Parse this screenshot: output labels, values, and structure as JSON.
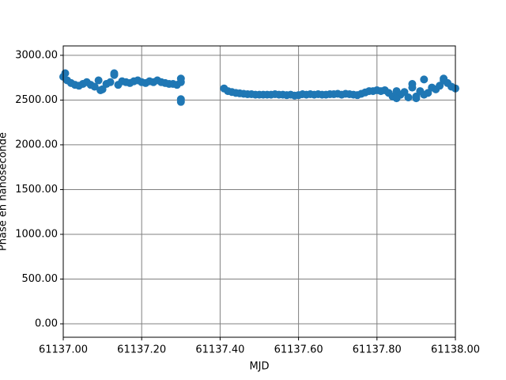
{
  "chart_data": {
    "type": "scatter",
    "x_label": "MJD",
    "y_label": "Phase en nanoseconde",
    "xlim": [
      61137.0,
      61138.0
    ],
    "ylim": [
      -150,
      3105
    ],
    "xticks": [
      {
        "value": 61137.0,
        "label": "61137.00"
      },
      {
        "value": 61137.2,
        "label": "61137.20"
      },
      {
        "value": 61137.4,
        "label": "61137.40"
      },
      {
        "value": 61137.6,
        "label": "61137.60"
      },
      {
        "value": 61137.8,
        "label": "61137.80"
      },
      {
        "value": 61138.0,
        "label": "61138.00"
      }
    ],
    "yticks": [
      {
        "value": 0,
        "label": "0.00"
      },
      {
        "value": 500,
        "label": "500.00"
      },
      {
        "value": 1000,
        "label": "1000.00"
      },
      {
        "value": 1500,
        "label": "1500.00"
      },
      {
        "value": 2000,
        "label": "2000.00"
      },
      {
        "value": 2500,
        "label": "2500.00"
      },
      {
        "value": 3000,
        "label": "3000.00"
      }
    ],
    "grid": true,
    "x": [
      61137.0,
      61137.01,
      61137.02,
      61137.03,
      61137.04,
      61137.05,
      61137.06,
      61137.07,
      61137.08,
      61137.09,
      61137.1,
      61137.11,
      61137.12,
      61137.13,
      61137.14,
      61137.15,
      61137.16,
      61137.17,
      61137.18,
      61137.19,
      61137.2,
      61137.21,
      61137.22,
      61137.23,
      61137.24,
      61137.25,
      61137.26,
      61137.27,
      61137.28,
      61137.29,
      61137.3,
      61137.3,
      61137.3,
      61137.3,
      61137.005,
      61137.13,
      61137.095,
      61137.41,
      61137.42,
      61137.43,
      61137.44,
      61137.45,
      61137.46,
      61137.47,
      61137.48,
      61137.49,
      61137.5,
      61137.51,
      61137.52,
      61137.53,
      61137.54,
      61137.55,
      61137.56,
      61137.57,
      61137.58,
      61137.59,
      61137.6,
      61137.61,
      61137.62,
      61137.63,
      61137.64,
      61137.65,
      61137.66,
      61137.67,
      61137.68,
      61137.69,
      61137.7,
      61137.71,
      61137.72,
      61137.73,
      61137.74,
      61137.75,
      61137.76,
      61137.77,
      61137.78,
      61137.79,
      61137.8,
      61137.81,
      61137.82,
      61137.83,
      61137.84,
      61137.85,
      61137.86,
      61137.87,
      61137.88,
      61137.89,
      61137.9,
      61137.91,
      61137.92,
      61137.93,
      61137.94,
      61137.95,
      61137.96,
      61137.97,
      61137.98,
      61137.99,
      61138.0,
      61137.89,
      61137.92,
      61137.97,
      61137.85,
      61137.9
    ],
    "series": [
      {
        "color": "#1f77b4",
        "values": [
          2760,
          2720,
          2690,
          2670,
          2660,
          2680,
          2700,
          2670,
          2650,
          2720,
          2620,
          2680,
          2700,
          2780,
          2670,
          2710,
          2700,
          2690,
          2710,
          2720,
          2700,
          2690,
          2710,
          2700,
          2720,
          2700,
          2690,
          2680,
          2680,
          2670,
          2700,
          2480,
          2510,
          2740,
          2800,
          2800,
          2610,
          2630,
          2600,
          2590,
          2580,
          2575,
          2570,
          2565,
          2565,
          2560,
          2560,
          2560,
          2560,
          2560,
          2565,
          2560,
          2560,
          2555,
          2560,
          2550,
          2555,
          2565,
          2560,
          2565,
          2560,
          2565,
          2560,
          2560,
          2565,
          2565,
          2570,
          2560,
          2570,
          2565,
          2560,
          2555,
          2570,
          2585,
          2600,
          2600,
          2610,
          2600,
          2610,
          2580,
          2540,
          2600,
          2560,
          2590,
          2530,
          2680,
          2540,
          2600,
          2730,
          2580,
          2640,
          2620,
          2660,
          2720,
          2690,
          2650,
          2630,
          2640,
          2560,
          2740,
          2520,
          2520
        ]
      }
    ]
  }
}
